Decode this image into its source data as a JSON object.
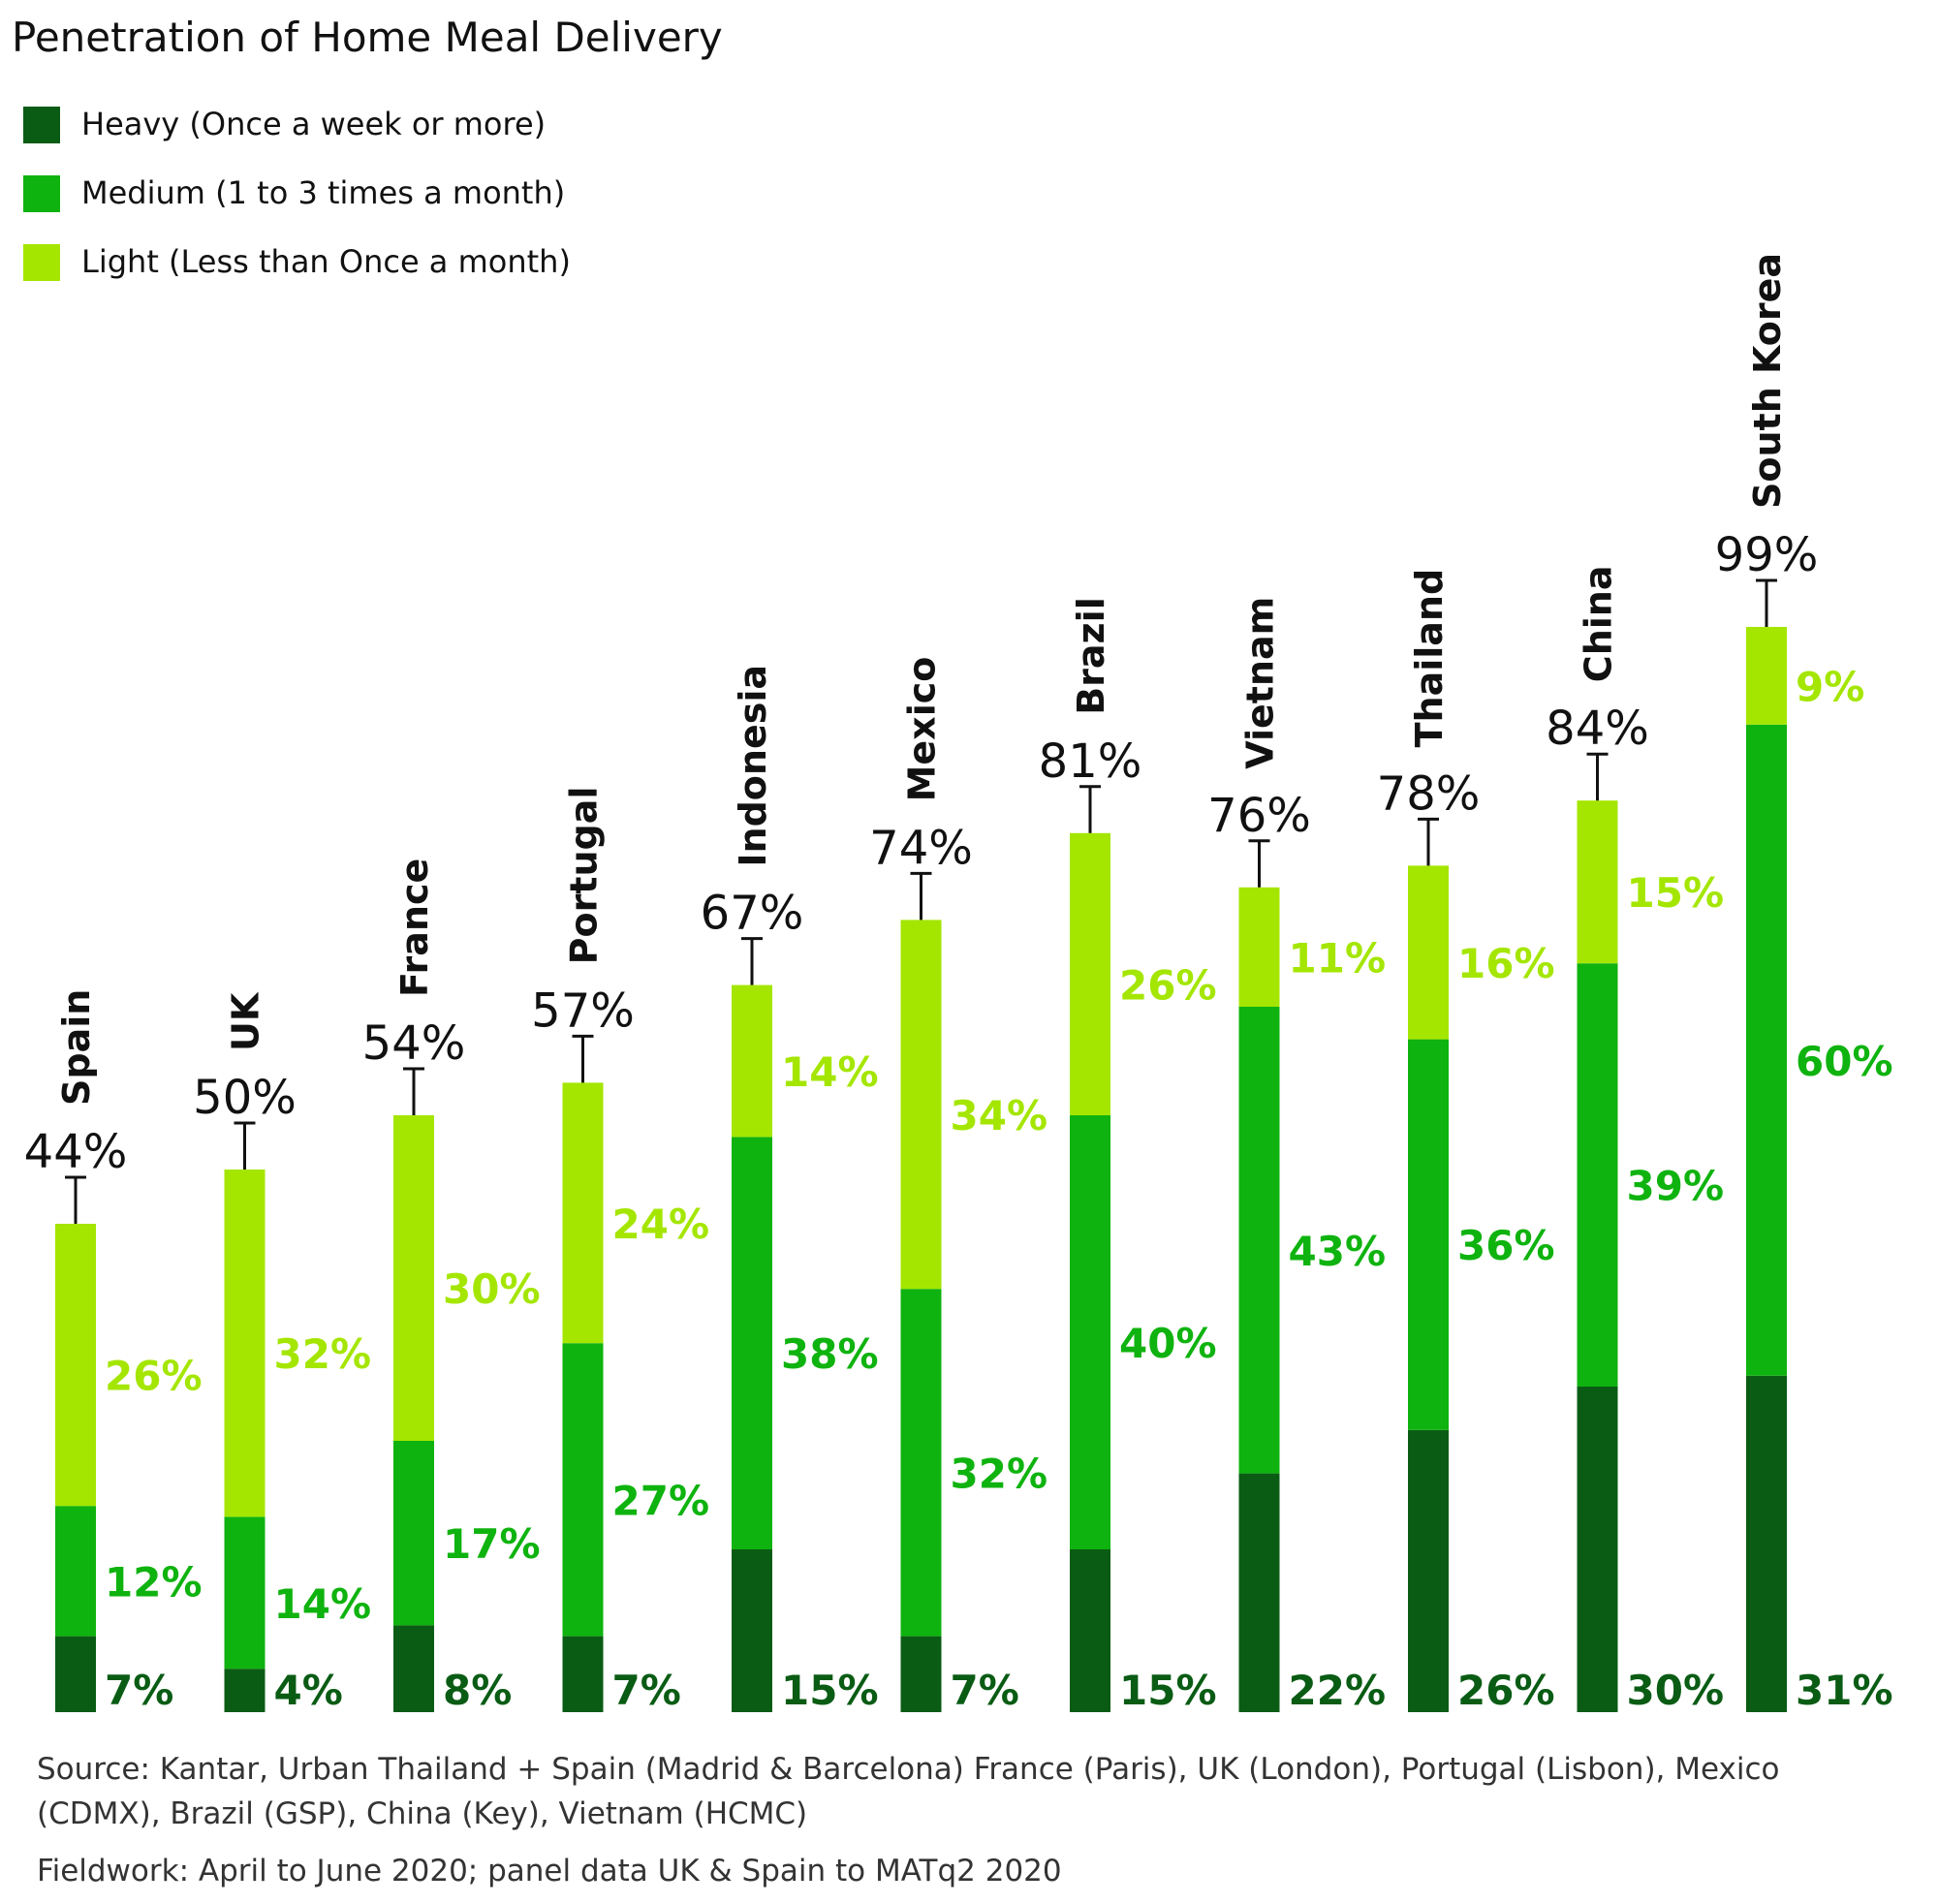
{
  "colors": {
    "heavy": "#0a5c14",
    "medium": "#0fb30f",
    "light": "#a4e600",
    "text": "#111111",
    "note": "#333333"
  },
  "chart_data": {
    "type": "bar",
    "stacked": true,
    "title": "Penetration of Home Meal Delivery",
    "categories": [
      "Spain",
      "UK",
      "France",
      "Portugal",
      "Indonesia",
      "Mexico",
      "Brazil",
      "Vietnam",
      "Thailand",
      "China",
      "South Korea"
    ],
    "series": [
      {
        "name": "Heavy (Once a week or more)",
        "values": [
          7,
          4,
          8,
          7,
          15,
          7,
          15,
          22,
          26,
          30,
          31
        ],
        "labels": [
          "7%",
          "4%",
          "8%",
          "7%",
          "15%",
          "7%",
          "15%",
          "22%",
          "26%",
          "30%",
          "31%"
        ]
      },
      {
        "name": "Medium (1 to 3 times a month)",
        "values": [
          12,
          14,
          17,
          27,
          38,
          32,
          40,
          43,
          36,
          39,
          60
        ],
        "labels": [
          "12%",
          "14%",
          "17%",
          "27%",
          "38%",
          "32%",
          "40%",
          "43%",
          "36%",
          "39%",
          "60%"
        ]
      },
      {
        "name": "Light (Less than Once a month)",
        "values": [
          26,
          32,
          30,
          24,
          14,
          34,
          26,
          11,
          16,
          15,
          9
        ],
        "labels": [
          "26%",
          "32%",
          "30%",
          "24%",
          "14%",
          "34%",
          "26%",
          "11%",
          "16%",
          "15%",
          "9%"
        ]
      }
    ],
    "totals": [
      44,
      50,
      54,
      57,
      67,
      74,
      81,
      76,
      78,
      84,
      99
    ],
    "total_labels": [
      "44%",
      "50%",
      "54%",
      "57%",
      "67%",
      "74%",
      "81%",
      "76%",
      "78%",
      "84%",
      "99%"
    ],
    "ylim": [
      0,
      100
    ],
    "legend_position": "top-left",
    "grid": false
  },
  "notes": {
    "source": "Source: Kantar, Urban Thailand + Spain (Madrid & Barcelona) France (Paris), UK (London), Portugal (Lisbon), Mexico (CDMX), Brazil (GSP), China (Key), Vietnam (HCMC)",
    "fieldwork": "Fieldwork: April to June 2020; panel data UK & Spain to MATq2 2020"
  }
}
